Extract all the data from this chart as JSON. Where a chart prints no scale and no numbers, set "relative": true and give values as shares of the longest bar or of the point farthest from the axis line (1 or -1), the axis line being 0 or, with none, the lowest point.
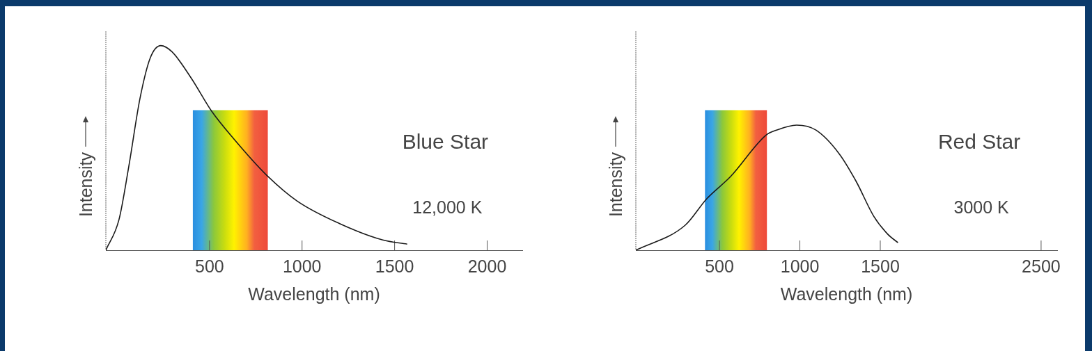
{
  "chart_data": [
    {
      "type": "line",
      "title": "Blue Star",
      "annotations": [
        "12,000 K"
      ],
      "xlabel": "Wavelength (nm)",
      "ylabel": "Intensity",
      "relative": true,
      "xlim": [
        -60,
        2190
      ],
      "xticks": [
        500,
        1000,
        1500,
        2000
      ],
      "x": [
        -60,
        11,
        64,
        124,
        180,
        237,
        297,
        402,
        511,
        635,
        805,
        974,
        1203,
        1436,
        1568
      ],
      "series": [
        {
          "color": "#1a1a1a",
          "values": [
            0,
            0.15,
            0.41,
            0.74,
            0.94,
            1,
            0.97,
            0.84,
            0.68,
            0.54,
            0.37,
            0.24,
            0.13,
            0.05,
            0.03
          ]
        }
      ],
      "bands": [
        {
          "axis": "x",
          "from": 410,
          "to": 815
        }
      ]
    },
    {
      "type": "line",
      "title": "Red Star",
      "annotations": [
        "3000 K"
      ],
      "xlabel": "Wavelength (nm)",
      "ylabel": "Intensity",
      "relative": true,
      "xlim": [
        -20,
        2600
      ],
      "xticks": [
        500,
        1000,
        1500,
        2500
      ],
      "x": [
        -20,
        287,
        420,
        570,
        790,
        855,
        980,
        1100,
        1245,
        1350,
        1460,
        1545,
        1610
      ],
      "series": [
        {
          "color": "#1a1a1a",
          "values": [
            0,
            0.2,
            0.41,
            0.59,
            0.92,
            0.96,
            1,
            0.96,
            0.77,
            0.55,
            0.27,
            0.13,
            0.06
          ]
        }
      ],
      "bands": [
        {
          "axis": "x",
          "from": 410,
          "to": 795
        }
      ]
    }
  ]
}
